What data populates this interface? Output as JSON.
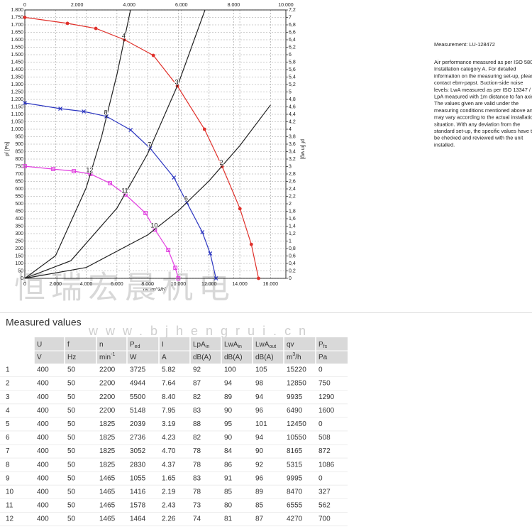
{
  "chart_data": {
    "type": "line",
    "xlabel": "qv [m^3/h]",
    "ylabel": "pf [Pa]",
    "y2label": "pf [in wg]",
    "xlim": [
      0,
      17000
    ],
    "x2lim": [
      0,
      10000
    ],
    "ylim": [
      0,
      1800
    ],
    "y2lim": [
      0,
      7.2
    ],
    "grid": true,
    "xticks": [
      0,
      {
        "value": 2000,
        "label": "2.000"
      },
      {
        "value": 4000,
        "label": "4.000"
      },
      {
        "value": 6000,
        "label": "6.000"
      },
      {
        "value": 8000,
        "label": "8.000"
      },
      {
        "value": 10000,
        "label": "10.000"
      },
      {
        "value": 12000,
        "label": "12.000"
      },
      {
        "value": 14000,
        "label": "14.000"
      },
      {
        "value": 16000,
        "label": "16.000"
      }
    ],
    "x2ticks": [
      0,
      {
        "value": 2000,
        "label": "2.000"
      },
      {
        "value": 4000,
        "label": "4.000"
      },
      {
        "value": 6000,
        "label": "6.000"
      },
      {
        "value": 8000,
        "label": "8.000"
      },
      {
        "value": 10000,
        "label": "10.000"
      }
    ],
    "yticks": [
      0,
      50,
      100,
      150,
      200,
      250,
      300,
      350,
      400,
      450,
      500,
      550,
      600,
      650,
      700,
      750,
      800,
      850,
      900,
      950,
      {
        "value": 1000,
        "label": "1.000"
      },
      {
        "value": 1050,
        "label": "1.050"
      },
      {
        "value": 1100,
        "label": "1.100"
      },
      {
        "value": 1150,
        "label": "1.150"
      },
      {
        "value": 1200,
        "label": "1.200"
      },
      {
        "value": 1250,
        "label": "1.250"
      },
      {
        "value": 1300,
        "label": "1.300"
      },
      {
        "value": 1350,
        "label": "1.350"
      },
      {
        "value": 1400,
        "label": "1.400"
      },
      {
        "value": 1450,
        "label": "1.450"
      },
      {
        "value": 1500,
        "label": "1.500"
      },
      {
        "value": 1550,
        "label": "1.550"
      },
      {
        "value": 1600,
        "label": "1.600"
      },
      {
        "value": 1650,
        "label": "1.650"
      },
      {
        "value": 1700,
        "label": "1.700"
      },
      {
        "value": 1750,
        "label": "1.750"
      },
      {
        "value": 1800,
        "label": "1.800"
      }
    ],
    "y2ticks": [
      0,
      {
        "value": 0.2,
        "label": "0,2"
      },
      {
        "value": 0.4,
        "label": "0,4"
      },
      {
        "value": 0.6,
        "label": "0,6"
      },
      {
        "value": 0.8,
        "label": "0,8"
      },
      1,
      {
        "value": 1.2,
        "label": "1,2"
      },
      {
        "value": 1.4,
        "label": "1,4"
      },
      {
        "value": 1.6,
        "label": "1,6"
      },
      {
        "value": 1.8,
        "label": "1,8"
      },
      2,
      {
        "value": 2.2,
        "label": "2,2"
      },
      {
        "value": 2.4,
        "label": "2,4"
      },
      {
        "value": 2.6,
        "label": "2,6"
      },
      {
        "value": 2.8,
        "label": "2,8"
      },
      3,
      {
        "value": 3.2,
        "label": "3,2"
      },
      {
        "value": 3.4,
        "label": "3,4"
      },
      {
        "value": 3.6,
        "label": "3,6"
      },
      {
        "value": 3.8,
        "label": "3,8"
      },
      4,
      {
        "value": 4.2,
        "label": "4,2"
      },
      {
        "value": 4.4,
        "label": "4,4"
      },
      {
        "value": 4.6,
        "label": "4,6"
      },
      {
        "value": 4.8,
        "label": "4,8"
      },
      5,
      {
        "value": 5.2,
        "label": "5,2"
      },
      {
        "value": 5.4,
        "label": "5,4"
      },
      {
        "value": 5.6,
        "label": "5,6"
      },
      {
        "value": 5.8,
        "label": "5,8"
      },
      6,
      {
        "value": 6.2,
        "label": "6,2"
      },
      {
        "value": 6.4,
        "label": "6,4"
      },
      {
        "value": 6.6,
        "label": "6,6"
      },
      {
        "value": 6.8,
        "label": "6,8"
      },
      7,
      {
        "value": 7.2,
        "label": "7,2"
      }
    ],
    "series": [
      {
        "color": "#e0302a",
        "marker": "circle",
        "x": [
          0,
          2775,
          4624,
          6490,
          8370,
          9935,
          11700,
          12850,
          14010,
          14750,
          15220
        ],
        "values": [
          1750,
          1710,
          1676,
          1600,
          1495,
          1290,
          1000,
          750,
          467,
          228,
          0
        ]
      },
      {
        "color": "#2b35c0",
        "marker": "x",
        "x": [
          0,
          2310,
          3840,
          5315,
          6890,
          8165,
          9710,
          10550,
          11560,
          12070,
          12450
        ],
        "values": [
          1176,
          1138,
          1119,
          1086,
          995,
          872,
          676,
          508,
          310,
          167,
          0
        ]
      },
      {
        "color": "#e23fe0",
        "marker": "square",
        "x": [
          0,
          1850,
          3190,
          4270,
          5550,
          6555,
          7860,
          8470,
          9340,
          9800,
          9995
        ],
        "values": [
          752,
          733,
          719,
          700,
          638,
          562,
          438,
          327,
          190,
          71,
          0
        ]
      },
      {
        "color": "#222222",
        "marker": "none",
        "x": [
          0,
          2000,
          4000,
          5000,
          6000,
          6883
        ],
        "values": [
          0,
          152,
          608,
          950,
          1368,
          1800
        ]
      },
      {
        "color": "#222222",
        "marker": "none",
        "x": [
          0,
          3000,
          6000,
          8000,
          10000,
          11735
        ],
        "values": [
          0,
          118,
          471,
          836,
          1307,
          1800
        ]
      },
      {
        "color": "#222222",
        "marker": "none",
        "x": [
          0,
          4000,
          8000,
          10000,
          12000,
          14000,
          16000
        ],
        "values": [
          0,
          73,
          291,
          454,
          654,
          890,
          1163
        ]
      }
    ],
    "annotations": [
      {
        "text": "4",
        "x": 6490,
        "y": 1600
      },
      {
        "text": "3",
        "x": 9935,
        "y": 1290
      },
      {
        "text": "2",
        "x": 12850,
        "y": 750
      },
      {
        "text": "8",
        "x": 5315,
        "y": 1086
      },
      {
        "text": "7",
        "x": 8165,
        "y": 872
      },
      {
        "text": "6",
        "x": 10550,
        "y": 508
      },
      {
        "text": "12",
        "x": 4270,
        "y": 700
      },
      {
        "text": "11",
        "x": 6555,
        "y": 562
      },
      {
        "text": "10",
        "x": 8470,
        "y": 327
      }
    ]
  },
  "note": {
    "title": "Measurement: LU-128472",
    "lines": [
      "Air performance measured as per ISO 5801",
      "Installation category A. For detailed",
      "information on the measuring set-up, please",
      "contact ebm-papst. Suction-side noise",
      "levels: LwA measured as per ISO 13347 /",
      "LpA measured with 1m distance to fan axis.",
      "The values given are valid under the",
      "measuring conditions mentioned above and",
      "may vary according to the actual installation",
      "situation. With any deviation from the",
      "standard set-up, the specific values have to",
      "be checked and reviewed with the unit",
      "installed."
    ]
  },
  "watermark": {
    "title": "恒瑞宏晨机电",
    "url": "www.bjhengrui.cn"
  },
  "table": {
    "title": "Measured values",
    "columns": [
      {
        "name": "U",
        "unit": "V"
      },
      {
        "name": "f",
        "unit": "Hz"
      },
      {
        "name": "n",
        "unit": "min",
        "unit_sup": "-1"
      },
      {
        "name": "P",
        "name_sub": "ed",
        "unit": "W"
      },
      {
        "name": "I",
        "unit": "A"
      },
      {
        "name": "LpA",
        "name_sub": "in",
        "unit": "dB(A)"
      },
      {
        "name": "LwA",
        "name_sub": "in",
        "unit": "dB(A)"
      },
      {
        "name": "LwA",
        "name_sub": "out",
        "unit": "dB(A)"
      },
      {
        "name": "qv",
        "unit": "m",
        "unit_sup": "3",
        "unit_tail": "/h"
      },
      {
        "name": "P",
        "name_sub": "fs",
        "unit": "Pa"
      }
    ],
    "rows": [
      [
        "1",
        "400",
        "50",
        "2200",
        "3725",
        "5.82",
        "92",
        "100",
        "105",
        "15220",
        "0"
      ],
      [
        "2",
        "400",
        "50",
        "2200",
        "4944",
        "7.64",
        "87",
        "94",
        "98",
        "12850",
        "750"
      ],
      [
        "3",
        "400",
        "50",
        "2200",
        "5500",
        "8.40",
        "82",
        "89",
        "94",
        "9935",
        "1290"
      ],
      [
        "4",
        "400",
        "50",
        "2200",
        "5148",
        "7.95",
        "83",
        "90",
        "96",
        "6490",
        "1600"
      ],
      [
        "5",
        "400",
        "50",
        "1825",
        "2039",
        "3.19",
        "88",
        "95",
        "101",
        "12450",
        "0"
      ],
      [
        "6",
        "400",
        "50",
        "1825",
        "2736",
        "4.23",
        "82",
        "90",
        "94",
        "10550",
        "508"
      ],
      [
        "7",
        "400",
        "50",
        "1825",
        "3052",
        "4.70",
        "78",
        "84",
        "90",
        "8165",
        "872"
      ],
      [
        "8",
        "400",
        "50",
        "1825",
        "2830",
        "4.37",
        "78",
        "86",
        "92",
        "5315",
        "1086"
      ],
      [
        "9",
        "400",
        "50",
        "1465",
        "1055",
        "1.65",
        "83",
        "91",
        "96",
        "9995",
        "0"
      ],
      [
        "10",
        "400",
        "50",
        "1465",
        "1416",
        "2.19",
        "78",
        "85",
        "89",
        "8470",
        "327"
      ],
      [
        "11",
        "400",
        "50",
        "1465",
        "1578",
        "2.43",
        "73",
        "80",
        "85",
        "6555",
        "562"
      ],
      [
        "12",
        "400",
        "50",
        "1465",
        "1464",
        "2.26",
        "74",
        "81",
        "87",
        "4270",
        "700"
      ]
    ]
  }
}
